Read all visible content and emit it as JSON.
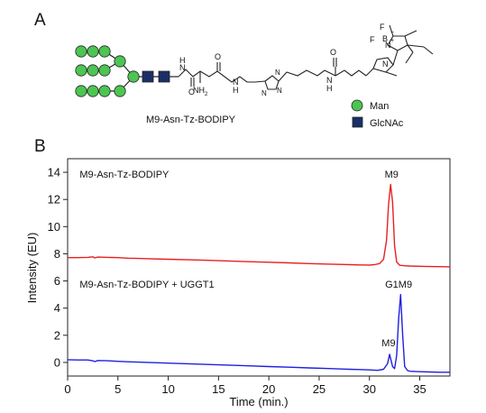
{
  "panel_a": {
    "label": "A",
    "compound_name": "M9-Asn-Tz-BODIPY",
    "atoms": {
      "nh_left": "N",
      "h_left": "H",
      "nh2": "NH",
      "nh2_sub": "2",
      "nh_mid": "N",
      "h_mid": "H",
      "tz_n1": "N",
      "tz_n2": "N",
      "tz_n3": "N",
      "nh_right": "N",
      "h_right": "H",
      "o1": "O",
      "o2": "O",
      "o3": "O",
      "n_upper": "N",
      "n_lower": "N",
      "b": "B",
      "f1": "F",
      "f2": "F",
      "plus": "+",
      "minus": "−"
    },
    "legend": [
      {
        "label": "Man",
        "shape": "circle",
        "color": "#4cc552"
      },
      {
        "label": "GlcNAc",
        "shape": "square",
        "color": "#1a2f66"
      }
    ]
  },
  "panel_b": {
    "label": "B"
  },
  "chart_data": {
    "type": "line",
    "xlabel": "Time (min.)",
    "ylabel": "Intensity (EU)",
    "xlim": [
      0,
      38
    ],
    "ylim": [
      -1,
      15
    ],
    "x_ticks": [
      0,
      5,
      10,
      15,
      20,
      25,
      30,
      35
    ],
    "y_ticks": [
      0,
      2,
      4,
      6,
      8,
      10,
      12,
      14
    ],
    "grid": false,
    "series": [
      {
        "name": "M9-Asn-Tz-BODIPY",
        "color": "#e82020",
        "x": [
          0,
          1,
          2,
          2.5,
          2.7,
          3,
          4,
          5,
          6,
          7,
          8,
          10,
          12,
          14,
          16,
          18,
          20,
          22,
          24,
          26,
          28,
          29,
          30,
          30.5,
          31,
          31.4,
          31.7,
          31.9,
          32.1,
          32.3,
          32.5,
          32.7,
          33,
          33.5,
          34,
          35,
          36,
          37,
          38
        ],
        "y": [
          7.72,
          7.72,
          7.74,
          7.78,
          7.7,
          7.76,
          7.74,
          7.72,
          7.68,
          7.66,
          7.64,
          7.6,
          7.56,
          7.52,
          7.47,
          7.42,
          7.38,
          7.33,
          7.28,
          7.24,
          7.2,
          7.18,
          7.17,
          7.2,
          7.28,
          7.6,
          9.0,
          11.6,
          13.1,
          11.8,
          8.6,
          7.4,
          7.15,
          7.12,
          7.1,
          7.08,
          7.06,
          7.05,
          7.04
        ]
      },
      {
        "name": "M9-Asn-Tz-BODIPY + UGGT1",
        "color": "#2020e0",
        "x": [
          0,
          1,
          2,
          2.5,
          2.7,
          3,
          4,
          5,
          6,
          7,
          8,
          10,
          12,
          14,
          16,
          18,
          20,
          22,
          24,
          26,
          28,
          29,
          30,
          30.8,
          31.4,
          31.8,
          32.0,
          32.3,
          32.5,
          32.7,
          32.9,
          33.1,
          33.3,
          33.5,
          33.8,
          34,
          35,
          36,
          37,
          38
        ],
        "y": [
          0.2,
          0.18,
          0.18,
          0.12,
          0.06,
          0.14,
          0.12,
          0.08,
          0.05,
          0.02,
          0.0,
          -0.05,
          -0.1,
          -0.15,
          -0.2,
          -0.25,
          -0.3,
          -0.35,
          -0.4,
          -0.45,
          -0.5,
          -0.52,
          -0.55,
          -0.58,
          -0.5,
          -0.1,
          0.6,
          -0.3,
          -0.45,
          0.5,
          3.2,
          5.0,
          2.0,
          -0.3,
          -0.6,
          -0.65,
          -0.68,
          -0.7,
          -0.72,
          -0.72
        ]
      }
    ],
    "annotations": [
      {
        "text": "M9-Asn-Tz-BODIPY",
        "x": 1.2,
        "y": 13.6
      },
      {
        "text": "M9-Asn-Tz-BODIPY + UGGT1",
        "x": 1.2,
        "y": 5.5
      },
      {
        "text": "M9",
        "x": 32.2,
        "y": 13.6,
        "anchor": "middle"
      },
      {
        "text": "G1M9",
        "x": 32.9,
        "y": 5.5,
        "anchor": "middle"
      },
      {
        "text": "M9",
        "x": 31.9,
        "y": 1.2,
        "anchor": "middle"
      }
    ]
  }
}
